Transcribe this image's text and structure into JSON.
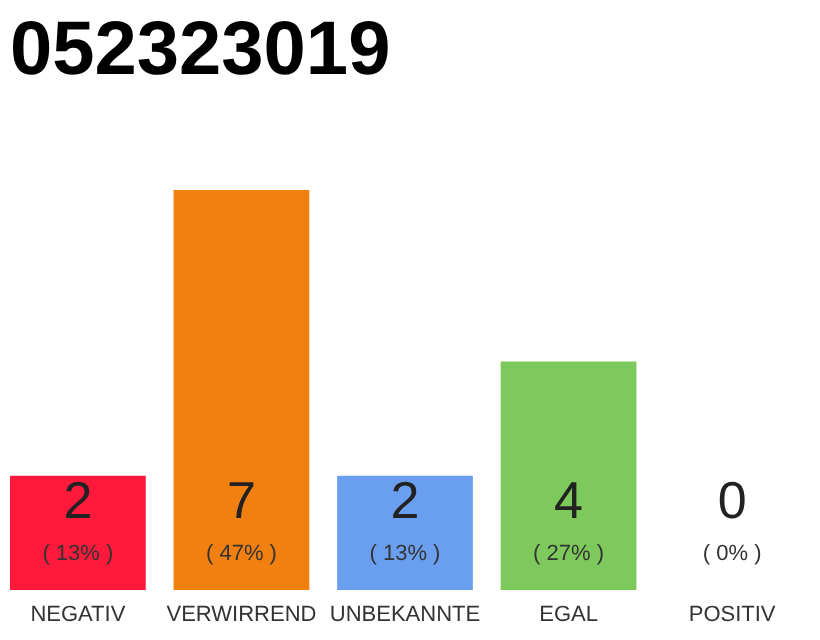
{
  "chart_data": {
    "type": "bar",
    "title": "052323019",
    "categories": [
      "NEGATIV",
      "VERWIRREND",
      "UNBEKANNTE",
      "EGAL",
      "POSITIV"
    ],
    "values": [
      2,
      7,
      2,
      4,
      0
    ],
    "colors": [
      "#ff1a3c",
      "#f28010",
      "#6a9ff0",
      "#7ec95b",
      "#cccccc"
    ],
    "value_labels": [
      "2",
      "7",
      "2",
      "4",
      "0"
    ],
    "annotations": [
      "( 13% )",
      "( 47% )",
      "( 13% )",
      "( 27% )",
      "( 0% )"
    ],
    "grid": false,
    "tick_labels": "x"
  }
}
